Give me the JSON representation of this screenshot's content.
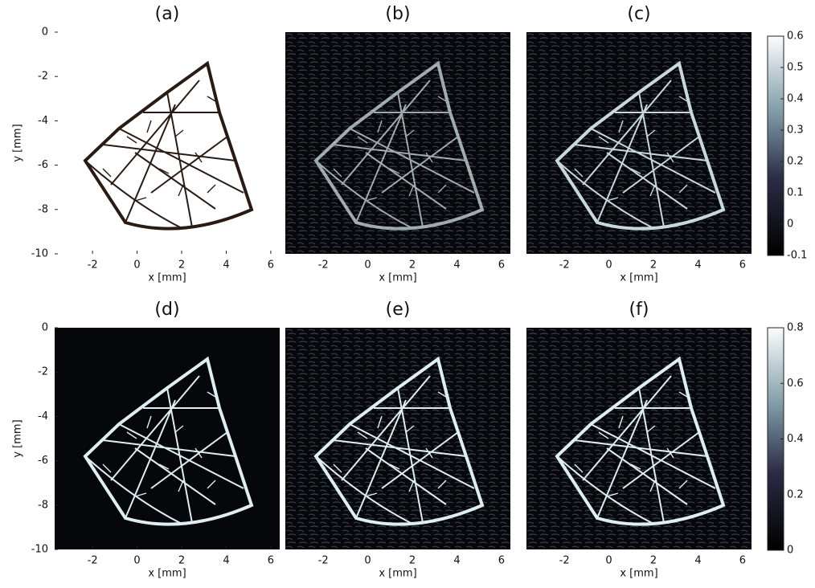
{
  "panels": [
    {
      "label": "(a)"
    },
    {
      "label": "(b)"
    },
    {
      "label": "(c)"
    },
    {
      "label": "(d)"
    },
    {
      "label": "(e)"
    },
    {
      "label": "(f)"
    }
  ],
  "x_label": "x [mm]",
  "y_label": "y [mm]",
  "xlim": [
    -3.7,
    6.4
  ],
  "ylim": [
    -10,
    0
  ],
  "xticks": [
    -2,
    0,
    2,
    4,
    6
  ],
  "yticks": [
    0,
    -2,
    -4,
    -6,
    -8,
    -10
  ],
  "colorbars": [
    {
      "lim": [
        -0.1,
        0.6
      ],
      "ticks": [
        0.6,
        0.5,
        0.4,
        0.3,
        0.2,
        0.1,
        0,
        -0.1
      ]
    },
    {
      "lim": [
        0,
        0.8
      ],
      "ticks": [
        0.8,
        0.6,
        0.4,
        0.2,
        0
      ]
    }
  ]
}
